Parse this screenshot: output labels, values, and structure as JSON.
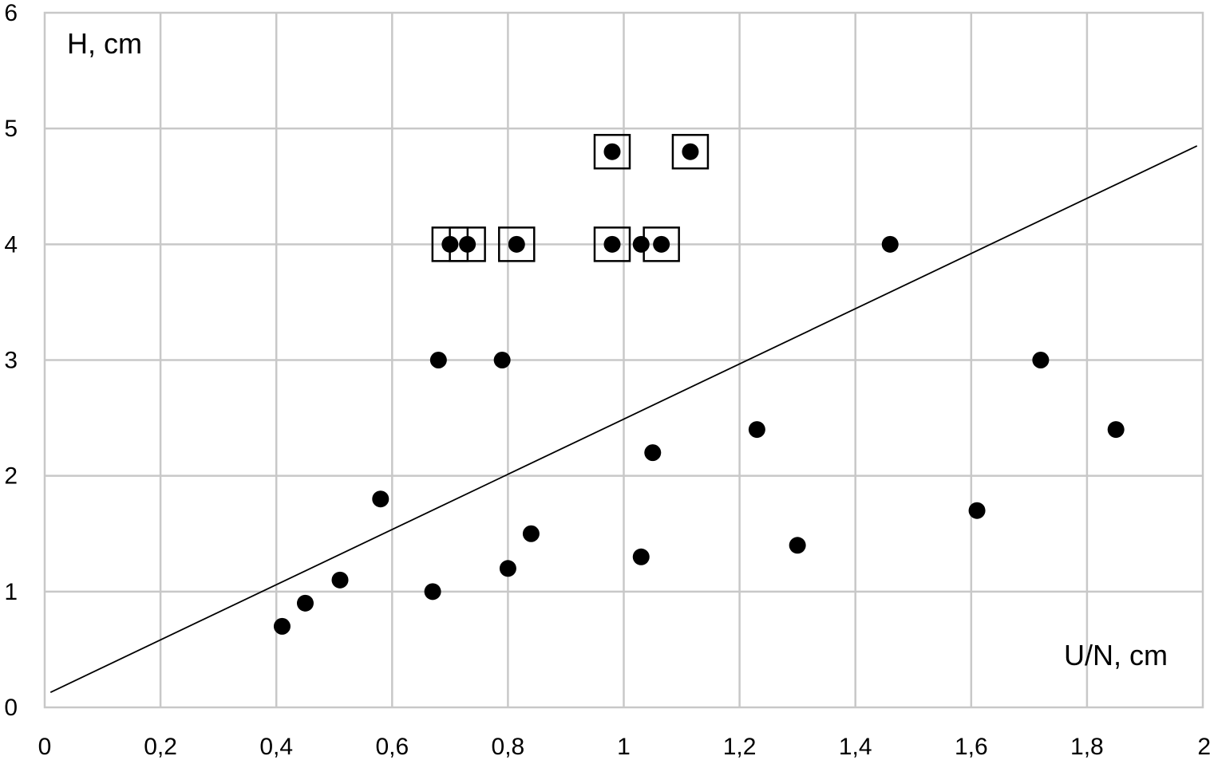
{
  "chart_data": {
    "type": "scatter",
    "title": "",
    "xlabel": "U/N, cm",
    "ylabel": "H, cm",
    "xlim": [
      0,
      2
    ],
    "ylim": [
      0,
      6
    ],
    "x_ticks": [
      "0",
      "0,2",
      "0,4",
      "0,6",
      "0,8",
      "1",
      "1,2",
      "1,4",
      "1,6",
      "1,8",
      "2"
    ],
    "y_ticks": [
      "0",
      "1",
      "2",
      "3",
      "4",
      "5",
      "6"
    ],
    "grid": true,
    "legend": "none",
    "series": [
      {
        "marker": "filled-circle",
        "points": [
          {
            "x": 0.41,
            "y": 0.7
          },
          {
            "x": 0.45,
            "y": 0.9
          },
          {
            "x": 0.51,
            "y": 1.1
          },
          {
            "x": 0.58,
            "y": 1.8
          },
          {
            "x": 0.67,
            "y": 1.0
          },
          {
            "x": 0.68,
            "y": 3.0
          },
          {
            "x": 0.79,
            "y": 3.0
          },
          {
            "x": 0.8,
            "y": 1.2
          },
          {
            "x": 0.84,
            "y": 1.5
          },
          {
            "x": 1.03,
            "y": 1.3
          },
          {
            "x": 1.05,
            "y": 2.2
          },
          {
            "x": 1.23,
            "y": 2.4
          },
          {
            "x": 1.3,
            "y": 1.4
          },
          {
            "x": 1.46,
            "y": 4.0
          },
          {
            "x": 1.61,
            "y": 1.7
          },
          {
            "x": 1.72,
            "y": 3.0
          },
          {
            "x": 1.85,
            "y": 2.4
          },
          {
            "x": 1.03,
            "y": 4.0
          }
        ]
      },
      {
        "marker": "filled-circle-in-square",
        "points": [
          {
            "x": 0.7,
            "y": 4.0
          },
          {
            "x": 0.73,
            "y": 4.0
          },
          {
            "x": 0.815,
            "y": 4.0
          },
          {
            "x": 0.98,
            "y": 4.0
          },
          {
            "x": 1.065,
            "y": 4.0
          },
          {
            "x": 0.98,
            "y": 4.8
          },
          {
            "x": 1.115,
            "y": 4.8
          }
        ]
      }
    ],
    "trendline": {
      "type": "linear",
      "from": {
        "x": 0.01,
        "y": 0.13
      },
      "to": {
        "x": 1.99,
        "y": 4.85
      }
    },
    "colors": {
      "markers": "#000000",
      "trendline": "#000000",
      "grid": "#c8c8c8"
    }
  }
}
